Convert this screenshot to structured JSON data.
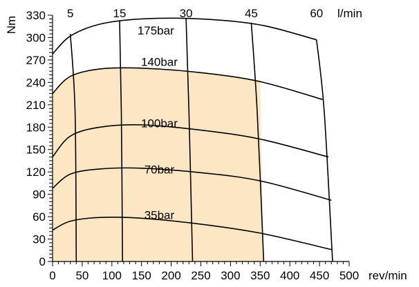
{
  "chart_data": {
    "type": "line",
    "title": "",
    "xlabel": "rev/min",
    "ylabel": "Nm",
    "top_axis_unit": "l/min",
    "xlim": [
      0,
      500
    ],
    "ylim": [
      0,
      330
    ],
    "xticks": [
      0,
      50,
      100,
      150,
      200,
      250,
      300,
      350,
      400,
      450,
      500
    ],
    "yticks": [
      0,
      30,
      60,
      90,
      120,
      150,
      180,
      210,
      240,
      270,
      300,
      330
    ],
    "grid": false,
    "highlight_color": "#fce6c4",
    "line_color": "#000000",
    "pressure_curves": [
      {
        "name": "175bar",
        "label_at": [
          174,
          304
        ],
        "points": [
          [
            0,
            278
          ],
          [
            30,
            302
          ],
          [
            80,
            318
          ],
          [
            150,
            325
          ],
          [
            250,
            325
          ],
          [
            350,
            317
          ],
          [
            445,
            297
          ]
        ]
      },
      {
        "name": "140bar",
        "label_at": [
          180,
          262
        ],
        "points": [
          [
            0,
            225
          ],
          [
            30,
            248
          ],
          [
            80,
            258
          ],
          [
            150,
            259
          ],
          [
            250,
            253
          ],
          [
            350,
            241
          ],
          [
            455,
            217
          ]
        ]
      },
      {
        "name": "100bar",
        "label_at": [
          180,
          180
        ],
        "points": [
          [
            0,
            140
          ],
          [
            30,
            168
          ],
          [
            80,
            180
          ],
          [
            150,
            183
          ],
          [
            250,
            176
          ],
          [
            350,
            164
          ],
          [
            465,
            140
          ]
        ]
      },
      {
        "name": "70bar",
        "label_at": [
          180,
          118
        ],
        "points": [
          [
            0,
            98
          ],
          [
            30,
            117
          ],
          [
            80,
            124
          ],
          [
            150,
            125
          ],
          [
            250,
            119
          ],
          [
            350,
            108
          ],
          [
            470,
            82
          ]
        ]
      },
      {
        "name": "35bar",
        "label_at": [
          180,
          57
        ],
        "points": [
          [
            0,
            42
          ],
          [
            30,
            54
          ],
          [
            80,
            59
          ],
          [
            150,
            58
          ],
          [
            250,
            50
          ],
          [
            350,
            38
          ],
          [
            470,
            16
          ]
        ]
      }
    ],
    "flow_lines": [
      {
        "name": "5",
        "points": [
          [
            30,
            305
          ],
          [
            38,
            200
          ],
          [
            40,
            0
          ]
        ]
      },
      {
        "name": "15",
        "points": [
          [
            113,
            322
          ],
          [
            116,
            200
          ],
          [
            118,
            0
          ]
        ]
      },
      {
        "name": "30",
        "points": [
          [
            225,
            326
          ],
          [
            230,
            200
          ],
          [
            236,
            0
          ]
        ]
      },
      {
        "name": "45",
        "points": [
          [
            335,
            320
          ],
          [
            345,
            200
          ],
          [
            356,
            0
          ]
        ]
      },
      {
        "name": "60",
        "points": [
          [
            445,
            297
          ],
          [
            458,
            200
          ],
          [
            472,
            0
          ]
        ]
      }
    ],
    "highlight_region": {
      "top": [
        [
          0,
          225
        ],
        [
          30,
          248
        ],
        [
          80,
          258
        ],
        [
          150,
          259
        ],
        [
          250,
          253
        ],
        [
          350,
          241
        ]
      ],
      "right": [
        [
          350,
          241
        ],
        [
          353,
          120
        ],
        [
          356,
          0
        ]
      ],
      "bottom": [
        [
          356,
          0
        ],
        [
          0,
          0
        ]
      ]
    }
  }
}
